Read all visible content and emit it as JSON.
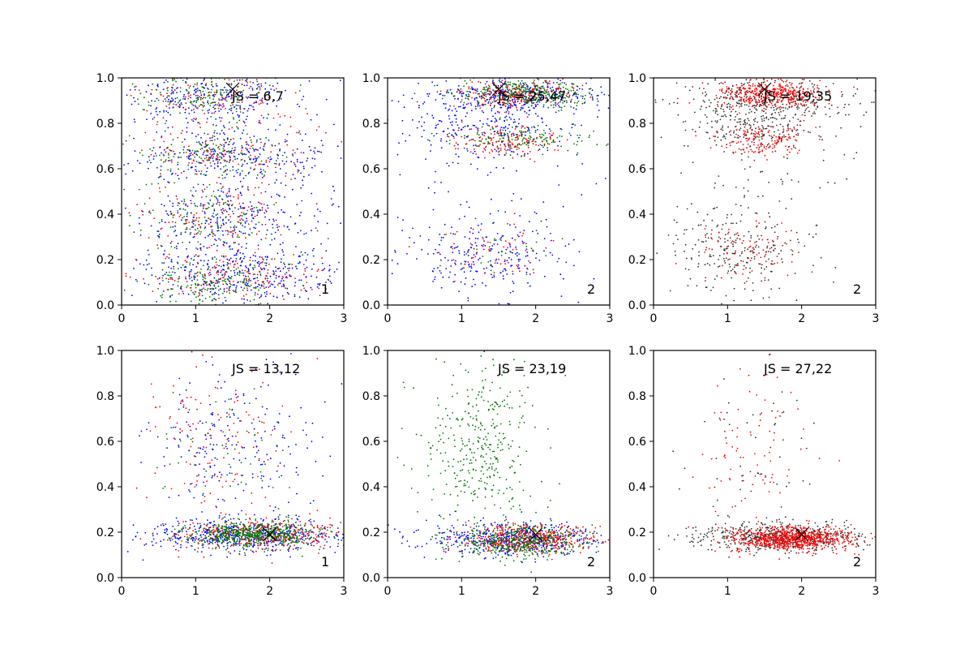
{
  "chart_data": [
    {
      "type": "scatter",
      "annotation": "JS = 6,7",
      "corner_label": "1",
      "marker": {
        "x": 1.5,
        "y": 0.95
      },
      "xlim": [
        0,
        3
      ],
      "ylim": [
        0,
        1.0
      ],
      "xticks": [
        "0",
        "1",
        "2",
        "3"
      ],
      "yticks": [
        "0.0",
        "0.2",
        "0.4",
        "0.6",
        "0.8",
        "1.0"
      ],
      "series": [
        {
          "color": "#0000ff",
          "clusters": [
            [
              1.2,
              0.92,
              0.6,
              0.06,
              250
            ],
            [
              1.5,
              0.66,
              0.6,
              0.05,
              220
            ],
            [
              1.4,
              0.38,
              0.6,
              0.07,
              200
            ],
            [
              1.6,
              0.14,
              0.7,
              0.06,
              350
            ],
            [
              1.5,
              0.5,
              1.1,
              0.3,
              250
            ]
          ]
        },
        {
          "color": "#ff0000",
          "clusters": [
            [
              1.2,
              0.92,
              0.5,
              0.06,
              120
            ],
            [
              1.4,
              0.66,
              0.5,
              0.05,
              100
            ],
            [
              1.3,
              0.38,
              0.5,
              0.07,
              100
            ],
            [
              1.5,
              0.12,
              0.6,
              0.06,
              150
            ],
            [
              1.3,
              0.5,
              0.9,
              0.3,
              100
            ]
          ]
        },
        {
          "color": "#007700",
          "clusters": [
            [
              1.1,
              0.92,
              0.45,
              0.05,
              150
            ],
            [
              1.3,
              0.66,
              0.45,
              0.05,
              140
            ],
            [
              1.2,
              0.38,
              0.45,
              0.07,
              120
            ],
            [
              1.3,
              0.1,
              0.5,
              0.05,
              200
            ],
            [
              1.2,
              0.5,
              0.8,
              0.3,
              80
            ]
          ]
        }
      ]
    },
    {
      "type": "scatter",
      "annotation": "JS = 25,47",
      "corner_label": "2",
      "marker": {
        "x": 1.5,
        "y": 0.95
      },
      "xlim": [
        0,
        3
      ],
      "ylim": [
        0,
        1.0
      ],
      "xticks": [
        "0",
        "1",
        "2",
        "3"
      ],
      "yticks": [
        "0.0",
        "0.2",
        "0.4",
        "0.6",
        "0.8",
        "1.0"
      ],
      "series": [
        {
          "color": "#0000ff",
          "clusters": [
            [
              1.7,
              0.92,
              0.6,
              0.04,
              350
            ],
            [
              1.3,
              0.78,
              0.6,
              0.06,
              200
            ],
            [
              1.3,
              0.22,
              0.5,
              0.08,
              200
            ],
            [
              1.3,
              0.5,
              0.8,
              0.25,
              120
            ]
          ]
        },
        {
          "color": "#ff0000",
          "clusters": [
            [
              1.7,
              0.93,
              0.4,
              0.03,
              250
            ],
            [
              1.6,
              0.72,
              0.35,
              0.03,
              150
            ],
            [
              1.4,
              0.25,
              0.4,
              0.06,
              60
            ]
          ]
        },
        {
          "color": "#007700",
          "clusters": [
            [
              1.9,
              0.93,
              0.5,
              0.03,
              320
            ],
            [
              1.8,
              0.73,
              0.45,
              0.03,
              150
            ],
            [
              1.5,
              0.25,
              0.4,
              0.06,
              40
            ]
          ]
        }
      ]
    },
    {
      "type": "scatter",
      "annotation": "JS = 19,35",
      "corner_label": "2",
      "marker": {
        "x": 1.5,
        "y": 0.95
      },
      "xlim": [
        0,
        3
      ],
      "ylim": [
        0,
        1.0
      ],
      "xticks": [
        "0",
        "1",
        "2",
        "3"
      ],
      "yticks": [
        "0.0",
        "0.2",
        "0.4",
        "0.6",
        "0.8",
        "1.0"
      ],
      "series": [
        {
          "color": "#333333",
          "clusters": [
            [
              1.5,
              0.9,
              0.6,
              0.05,
              300
            ],
            [
              1.4,
              0.78,
              0.5,
              0.05,
              200
            ],
            [
              1.2,
              0.22,
              0.45,
              0.1,
              220
            ],
            [
              1.3,
              0.5,
              0.7,
              0.2,
              100
            ]
          ]
        },
        {
          "color": "#ff0000",
          "clusters": [
            [
              1.6,
              0.93,
              0.35,
              0.03,
              400
            ],
            [
              1.5,
              0.72,
              0.3,
              0.04,
              150
            ],
            [
              1.3,
              0.25,
              0.35,
              0.06,
              80
            ]
          ]
        }
      ]
    },
    {
      "type": "scatter",
      "annotation": "JS = 13,12",
      "corner_label": "1",
      "marker": {
        "x": 2.0,
        "y": 0.19
      },
      "xlim": [
        0,
        3
      ],
      "ylim": [
        0,
        1.0
      ],
      "xticks": [
        "0",
        "1",
        "2",
        "3"
      ],
      "yticks": [
        "0.0",
        "0.2",
        "0.4",
        "0.6",
        "0.8",
        "1.0"
      ],
      "series": [
        {
          "color": "#0000ff",
          "clusters": [
            [
              1.7,
              0.19,
              0.7,
              0.035,
              500
            ],
            [
              1.5,
              0.6,
              0.6,
              0.18,
              220
            ]
          ]
        },
        {
          "color": "#ff0000",
          "clusters": [
            [
              1.9,
              0.19,
              0.6,
              0.035,
              350
            ],
            [
              1.3,
              0.6,
              0.5,
              0.18,
              120
            ]
          ]
        },
        {
          "color": "#007700",
          "clusters": [
            [
              1.8,
              0.19,
              0.45,
              0.03,
              600
            ],
            [
              1.4,
              0.6,
              0.4,
              0.15,
              60
            ]
          ]
        }
      ]
    },
    {
      "type": "scatter",
      "annotation": "JS = 23,19",
      "corner_label": "2",
      "marker": {
        "x": 2.0,
        "y": 0.19
      },
      "xlim": [
        0,
        3
      ],
      "ylim": [
        0,
        1.0
      ],
      "xticks": [
        "0",
        "1",
        "2",
        "3"
      ],
      "yticks": [
        "0.0",
        "0.2",
        "0.4",
        "0.6",
        "0.8",
        "1.0"
      ],
      "series": [
        {
          "color": "#0000ff",
          "clusters": [
            [
              1.7,
              0.17,
              0.6,
              0.035,
              500
            ]
          ]
        },
        {
          "color": "#ff0000",
          "clusters": [
            [
              1.9,
              0.17,
              0.45,
              0.03,
              450
            ]
          ]
        },
        {
          "color": "#007700",
          "clusters": [
            [
              1.8,
              0.16,
              0.45,
              0.035,
              450
            ],
            [
              1.2,
              0.6,
              0.4,
              0.2,
              380
            ]
          ]
        }
      ]
    },
    {
      "type": "scatter",
      "annotation": "JS = 27,22",
      "corner_label": "2",
      "marker": {
        "x": 2.0,
        "y": 0.19
      },
      "xlim": [
        0,
        3
      ],
      "ylim": [
        0,
        1.0
      ],
      "xticks": [
        "0",
        "1",
        "2",
        "3"
      ],
      "yticks": [
        "0.0",
        "0.2",
        "0.4",
        "0.6",
        "0.8",
        "1.0"
      ],
      "series": [
        {
          "color": "#333333",
          "clusters": [
            [
              1.7,
              0.18,
              0.6,
              0.03,
              550
            ],
            [
              1.3,
              0.55,
              0.45,
              0.2,
              60
            ]
          ]
        },
        {
          "color": "#ff0000",
          "clusters": [
            [
              1.9,
              0.17,
              0.4,
              0.025,
              800
            ],
            [
              1.3,
              0.55,
              0.4,
              0.2,
              80
            ]
          ]
        }
      ]
    }
  ]
}
